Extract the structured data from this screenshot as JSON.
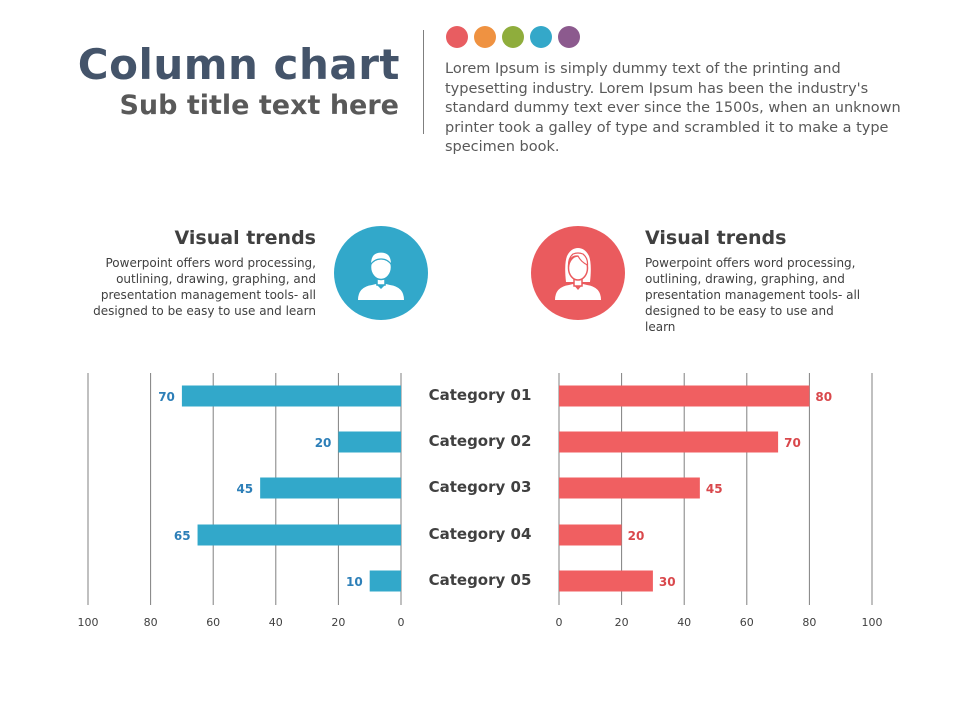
{
  "header": {
    "title": "Column chart",
    "subtitle": "Sub title text here",
    "description": "Lorem Ipsum is simply dummy text of the printing and typesetting industry. Lorem Ipsum has been the industry's standard dummy text ever since the 1500s, when an unknown printer took a galley of type and scrambled it to make a type specimen book.",
    "dot_colors": [
      "#e85d61",
      "#ef9241",
      "#8fad3c",
      "#34a8c9",
      "#8c5a8e"
    ]
  },
  "panels": {
    "left": {
      "heading": "Visual trends",
      "text": "Powerpoint offers word processing, outlining, drawing, graphing, and presentation management tools- all designed to be easy to use and learn",
      "icon": "male-user-icon",
      "color": "#32a8ca"
    },
    "right": {
      "heading": "Visual trends",
      "text": "Powerpoint offers word processing, outlining, drawing, graphing, and presentation management tools- all designed to be easy to use and learn",
      "icon": "female-user-icon",
      "color": "#ea5b5e"
    }
  },
  "chart_data": [
    {
      "type": "bar",
      "orientation": "horizontal",
      "direction": "right-to-left",
      "categories": [
        "Category 01",
        "Category 02",
        "Category 03",
        "Category 04",
        "Category 05"
      ],
      "values": [
        70,
        20,
        45,
        65,
        10
      ],
      "xlim": [
        0,
        100
      ],
      "xticks": [
        100,
        80,
        60,
        40,
        20,
        0
      ],
      "grid": true,
      "data_labels": true,
      "bar_color": "#32a8ca",
      "label_color": "#2d7fb8"
    },
    {
      "type": "bar",
      "orientation": "horizontal",
      "direction": "left-to-right",
      "categories": [
        "Category 01",
        "Category 02",
        "Category 03",
        "Category 04",
        "Category 05"
      ],
      "values": [
        80,
        70,
        45,
        20,
        30
      ],
      "xlim": [
        0,
        100
      ],
      "xticks": [
        0,
        20,
        40,
        60,
        80,
        100
      ],
      "grid": true,
      "data_labels": true,
      "bar_color": "#f05f61",
      "label_color": "#d9484c"
    }
  ]
}
